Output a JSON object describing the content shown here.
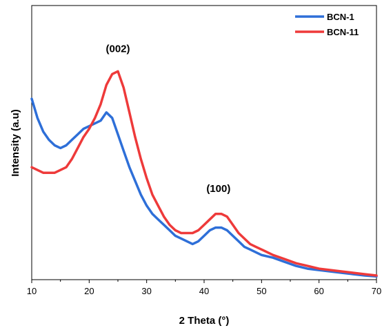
{
  "chart_data": {
    "type": "line",
    "title": "",
    "xlabel": "2 Theta (°)",
    "ylabel": "Intensity (a.u)",
    "xlim": [
      10,
      70
    ],
    "ylim": [
      0,
      1
    ],
    "x_ticks": [
      "10",
      "20",
      "30",
      "40",
      "50",
      "60",
      "70"
    ],
    "y_ticks_shown": false,
    "grid": false,
    "legend_position": "top-right",
    "series": [
      {
        "name": "BCN-1",
        "color": "#2E6FD8",
        "x": [
          10,
          11,
          12,
          13,
          14,
          15,
          16,
          17,
          18,
          19,
          20,
          21,
          22,
          23,
          24,
          25,
          26,
          27,
          28,
          29,
          30,
          31,
          32,
          33,
          34,
          35,
          36,
          37,
          38,
          39,
          40,
          41,
          42,
          43,
          44,
          45,
          46,
          47,
          48,
          49,
          50,
          52,
          54,
          56,
          58,
          60,
          62,
          64,
          66,
          68,
          70
        ],
        "y": [
          0.66,
          0.59,
          0.54,
          0.51,
          0.49,
          0.48,
          0.49,
          0.51,
          0.53,
          0.55,
          0.56,
          0.57,
          0.58,
          0.61,
          0.59,
          0.53,
          0.47,
          0.41,
          0.36,
          0.31,
          0.27,
          0.24,
          0.22,
          0.2,
          0.18,
          0.16,
          0.15,
          0.14,
          0.13,
          0.14,
          0.16,
          0.18,
          0.19,
          0.19,
          0.18,
          0.16,
          0.14,
          0.12,
          0.11,
          0.1,
          0.09,
          0.08,
          0.065,
          0.05,
          0.04,
          0.035,
          0.03,
          0.025,
          0.02,
          0.015,
          0.012
        ]
      },
      {
        "name": "BCN-11",
        "color": "#EE3A3A",
        "x": [
          10,
          11,
          12,
          13,
          14,
          15,
          16,
          17,
          18,
          19,
          20,
          21,
          22,
          23,
          24,
          25,
          26,
          27,
          28,
          29,
          30,
          31,
          32,
          33,
          34,
          35,
          36,
          37,
          38,
          39,
          40,
          41,
          42,
          43,
          44,
          45,
          46,
          47,
          48,
          49,
          50,
          52,
          54,
          56,
          58,
          60,
          62,
          64,
          66,
          68,
          70
        ],
        "y": [
          0.41,
          0.4,
          0.39,
          0.39,
          0.39,
          0.4,
          0.41,
          0.44,
          0.48,
          0.52,
          0.55,
          0.59,
          0.64,
          0.71,
          0.75,
          0.76,
          0.7,
          0.61,
          0.52,
          0.44,
          0.37,
          0.31,
          0.27,
          0.23,
          0.2,
          0.18,
          0.17,
          0.17,
          0.17,
          0.18,
          0.2,
          0.22,
          0.24,
          0.24,
          0.23,
          0.2,
          0.17,
          0.15,
          0.13,
          0.12,
          0.11,
          0.09,
          0.075,
          0.06,
          0.05,
          0.04,
          0.035,
          0.03,
          0.025,
          0.02,
          0.015
        ]
      }
    ],
    "annotations": [
      {
        "text": "(002)",
        "x": 25,
        "y": 0.83
      },
      {
        "text": "(100)",
        "x": 42.5,
        "y": 0.32
      }
    ]
  }
}
